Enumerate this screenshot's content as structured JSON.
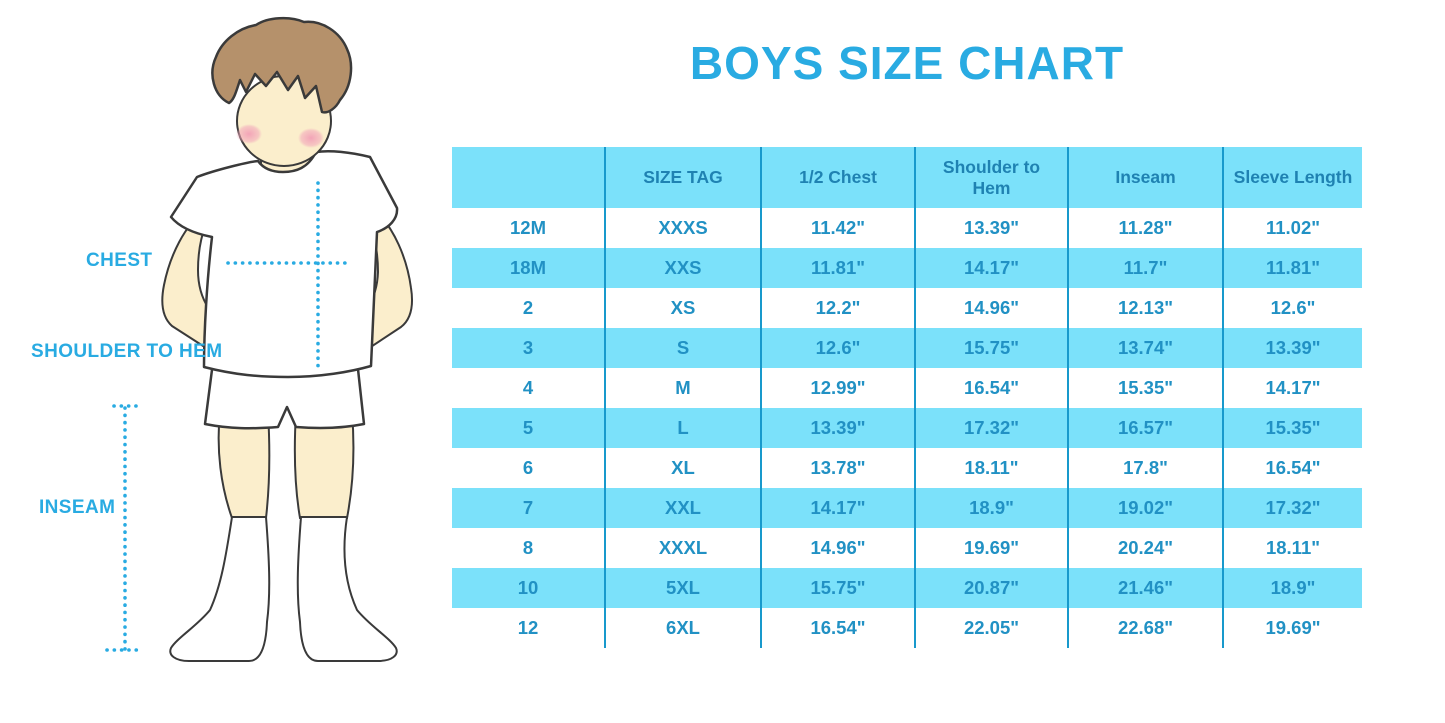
{
  "page": {
    "background": "#ffffff"
  },
  "chart_data": {
    "type": "table",
    "title": "BOYS SIZE CHART",
    "columns": [
      "",
      "SIZE TAG",
      "1/2 Chest",
      "Shoulder to Hem",
      "Inseam",
      "Sleeve Length"
    ],
    "rows": [
      [
        "12M",
        "XXXS",
        "11.42\"",
        "13.39\"",
        "11.28\"",
        "11.02\""
      ],
      [
        "18M",
        "XXS",
        "11.81\"",
        "14.17\"",
        "11.7\"",
        "11.81\""
      ],
      [
        "2",
        "XS",
        "12.2\"",
        "14.96\"",
        "12.13\"",
        "12.6\""
      ],
      [
        "3",
        "S",
        "12.6\"",
        "15.75\"",
        "13.74\"",
        "13.39\""
      ],
      [
        "4",
        "M",
        "12.99\"",
        "16.54\"",
        "15.35\"",
        "14.17\""
      ],
      [
        "5",
        "L",
        "13.39\"",
        "17.32\"",
        "16.57\"",
        "15.35\""
      ],
      [
        "6",
        "XL",
        "13.78\"",
        "18.11\"",
        "17.8\"",
        "16.54\""
      ],
      [
        "7",
        "XXL",
        "14.17\"",
        "18.9\"",
        "19.02\"",
        "17.32\""
      ],
      [
        "8",
        "XXXL",
        "14.96\"",
        "19.69\"",
        "20.24\"",
        "18.11\""
      ],
      [
        "10",
        "5XL",
        "15.75\"",
        "20.87\"",
        "21.46\"",
        "18.9\""
      ],
      [
        "12",
        "6XL",
        "16.54\"",
        "22.05\"",
        "22.68\"",
        "19.69\""
      ]
    ],
    "row_striping": "header and alternate rows light blue",
    "units": "inches"
  },
  "figure": {
    "measurement_labels": {
      "chest": "CHEST",
      "shoulder_to_hem": "SHOULDER TO HEM",
      "inseam": "INSEAM"
    }
  },
  "colors": {
    "title_blue": "#29ABE2",
    "row_stripe_blue": "#7BE1FA",
    "divider_blue": "#1899CC",
    "table_text_blue": "#2191C4",
    "dotted_line_blue": "#29ABE2",
    "skin": "#FBEECC",
    "hair": "#B5916B",
    "blush": "#F2A6BA",
    "outline": "#3A3A3A"
  }
}
